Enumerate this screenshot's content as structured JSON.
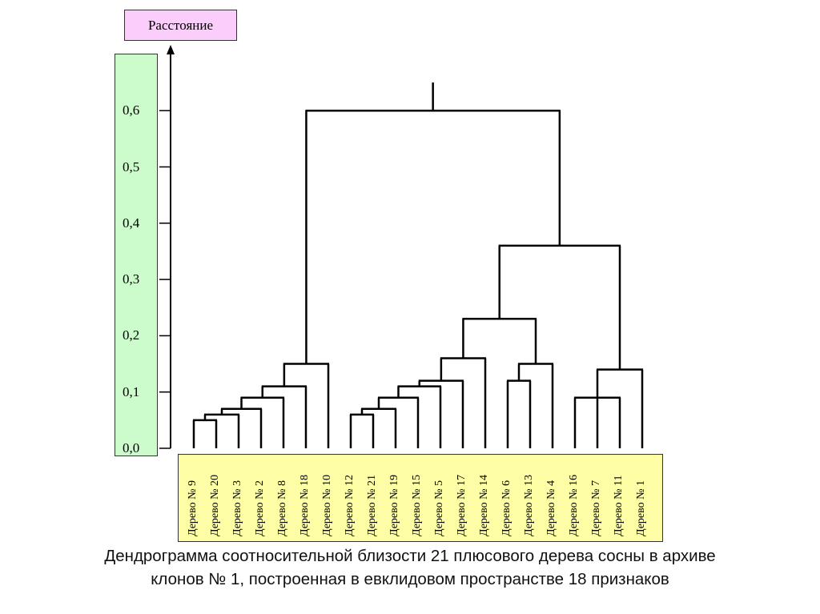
{
  "chart_data": {
    "type": "dendrogram",
    "ylabel": "Расстояние",
    "ylim": [
      0,
      0.65
    ],
    "yticks": [
      "0,0",
      "0,1",
      "0,2",
      "0,3",
      "0,4",
      "0,5",
      "0,6"
    ],
    "ytick_values": [
      0,
      0.1,
      0.2,
      0.3,
      0.4,
      0.5,
      0.6
    ],
    "leaves": [
      "Дерево № 9",
      "Дерево № 20",
      "Дерево № 3",
      "Дерево № 2",
      "Дерево № 8",
      "Дерево № 18",
      "Дерево № 10",
      "Дерево № 12",
      "Дерево № 21",
      "Дерево № 19",
      "Дерево № 15",
      "Дерево № 5",
      "Дерево № 17",
      "Дерево № 14",
      "Дерево № 6",
      "Дерево № 13",
      "Дерево № 4",
      "Дерево № 16",
      "Дерево № 7",
      "Дерево № 11",
      "Дерево № 1"
    ],
    "root_stem": 0.65,
    "tree": {
      "h": 0.6,
      "c": [
        {
          "h": 0.15,
          "c": [
            {
              "h": 0.11,
              "c": [
                {
                  "h": 0.09,
                  "c": [
                    {
                      "h": 0.07,
                      "c": [
                        {
                          "h": 0.06,
                          "c": [
                            {
                              "h": 0.05,
                              "c": [
                                0,
                                1
                              ]
                            },
                            2
                          ]
                        },
                        3
                      ]
                    },
                    4
                  ]
                },
                5
              ]
            },
            6
          ]
        },
        {
          "h": 0.36,
          "c": [
            {
              "h": 0.23,
              "c": [
                {
                  "h": 0.16,
                  "c": [
                    {
                      "h": 0.12,
                      "c": [
                        {
                          "h": 0.11,
                          "c": [
                            {
                              "h": 0.09,
                              "c": [
                                {
                                  "h": 0.07,
                                  "c": [
                                    {
                                      "h": 0.06,
                                      "c": [
                                        7,
                                        8
                                      ]
                                    },
                                    9
                                  ]
                                },
                                10
                              ]
                            },
                            11
                          ]
                        },
                        12
                      ]
                    },
                    13
                  ]
                },
                {
                  "h": 0.15,
                  "c": [
                    {
                      "h": 0.12,
                      "c": [
                        14,
                        15
                      ]
                    },
                    16
                  ]
                }
              ]
            },
            {
              "h": 0.14,
              "c": [
                {
                  "h": 0.09,
                  "c": [
                    17,
                    18,
                    19
                  ]
                },
                20
              ]
            }
          ]
        }
      ]
    }
  },
  "caption": {
    "line1": "Дендрограмма соотносительной близости 21 плюсового дерева сосны в архиве",
    "line2": "клонов № 1, построенная в евклидовом пространстве 18 признаков"
  }
}
